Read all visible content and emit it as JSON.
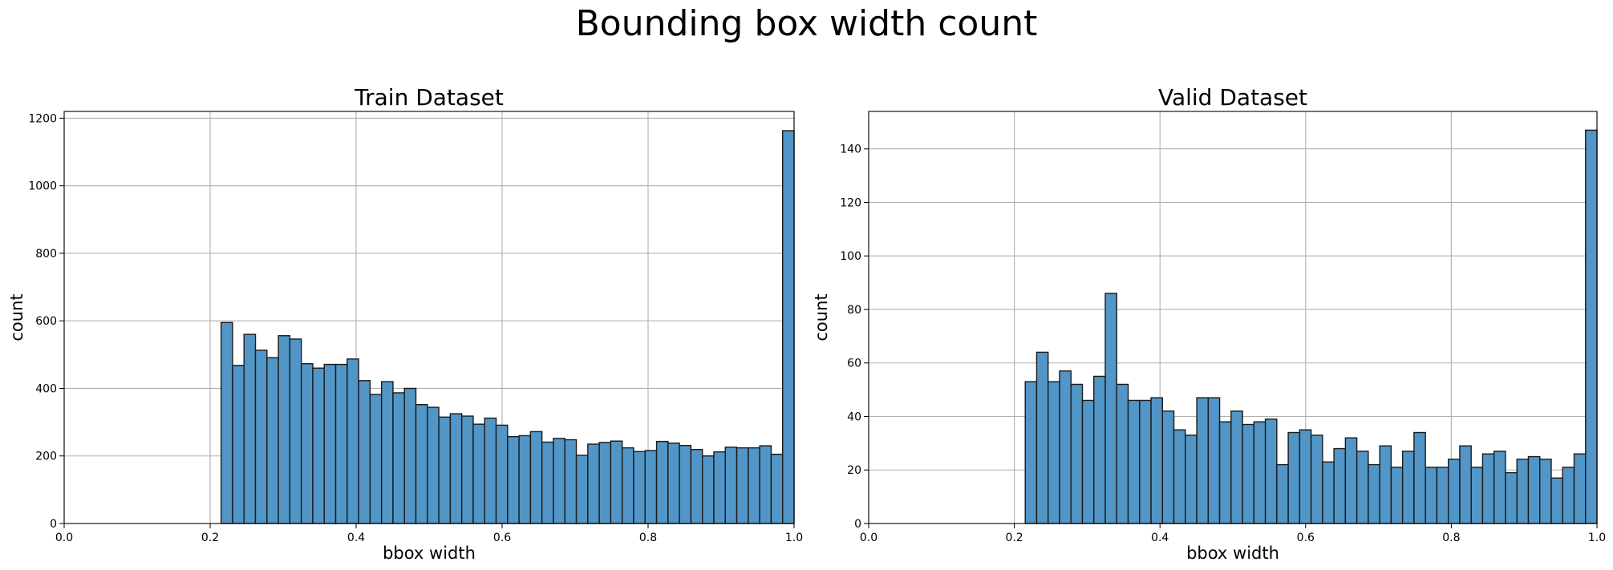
{
  "suptitle": "Bounding box width count",
  "style": {
    "bar_fill": "#5196c6",
    "bar_edge": "#1a1a1a",
    "grid": "#b0b0b0"
  },
  "chart_data": [
    {
      "type": "bar",
      "title": "Train Dataset",
      "xlabel": "bbox width",
      "ylabel": "count",
      "xlim": [
        0.0,
        1.0
      ],
      "ylim": [
        0,
        1220
      ],
      "xticks": [
        "0.0",
        "0.2",
        "0.4",
        "0.6",
        "0.8",
        "1.0"
      ],
      "yticks": [
        "0",
        "200",
        "400",
        "600",
        "800",
        "1000",
        "1200"
      ],
      "grid": true,
      "bin_range": [
        0.215,
        1.0
      ],
      "values": [
        595,
        468,
        560,
        513,
        491,
        556,
        546,
        473,
        460,
        471,
        471,
        487,
        423,
        382,
        420,
        387,
        400,
        352,
        344,
        315,
        325,
        318,
        294,
        312,
        291,
        257,
        260,
        272,
        241,
        252,
        248,
        202,
        235,
        240,
        244,
        224,
        213,
        216,
        243,
        238,
        231,
        219,
        200,
        212,
        226,
        224,
        224,
        230,
        205,
        1163
      ]
    },
    {
      "type": "bar",
      "title": "Valid Dataset",
      "xlabel": "bbox width",
      "ylabel": "count",
      "xlim": [
        0.0,
        1.0
      ],
      "ylim": [
        0,
        154
      ],
      "xticks": [
        "0.0",
        "0.2",
        "0.4",
        "0.6",
        "0.8",
        "1.0"
      ],
      "yticks": [
        "0",
        "20",
        "40",
        "60",
        "80",
        "100",
        "120",
        "140"
      ],
      "grid": true,
      "bin_range": [
        0.215,
        1.0
      ],
      "values": [
        53,
        64,
        53,
        57,
        52,
        46,
        55,
        86,
        52,
        46,
        46,
        47,
        42,
        35,
        33,
        47,
        47,
        38,
        42,
        37,
        38,
        39,
        22,
        34,
        35,
        33,
        23,
        28,
        32,
        27,
        22,
        29,
        21,
        27,
        34,
        21,
        21,
        24,
        29,
        21,
        26,
        27,
        19,
        24,
        25,
        24,
        17,
        21,
        26,
        147
      ]
    }
  ]
}
